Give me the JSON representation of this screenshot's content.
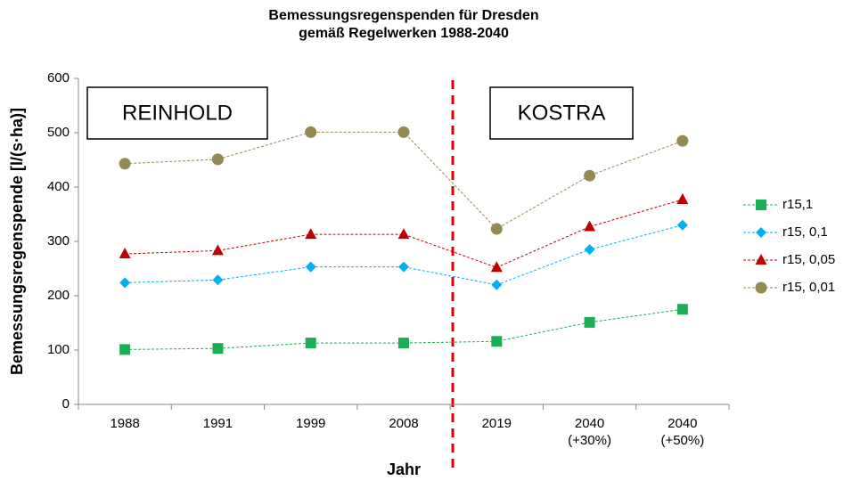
{
  "chart_data": {
    "type": "line",
    "title": "Bemessungsregenspenden für Dresden\ngemäß Regelwerken 1988-2040",
    "y_label": "Bemessungsregenspende [l/(s·ha)]",
    "x_label": "Jahr",
    "annotations": [
      "REINHOLD",
      "KOSTRA"
    ],
    "categories": [
      "1988",
      "1991",
      "1999",
      "2008",
      "2019",
      "2040\n(+30%)",
      "2040\n(+50%)"
    ],
    "ylim": [
      0,
      600
    ],
    "yticks": [
      0,
      100,
      200,
      300,
      400,
      500,
      600
    ],
    "grid": false,
    "legend": "right",
    "series": [
      {
        "name": "r15,1",
        "color": "#1aaf54",
        "marker": "square",
        "values": [
          101,
          103,
          113,
          113,
          116,
          151,
          175
        ]
      },
      {
        "name": "r15, 0,1",
        "color": "#00b0f0",
        "marker": "diamond",
        "values": [
          224,
          229,
          253,
          253,
          220,
          285,
          330
        ]
      },
      {
        "name": "r15, 0,05",
        "color": "#c00000",
        "marker": "triangle",
        "values": [
          277,
          283,
          313,
          313,
          252,
          327,
          377
        ]
      },
      {
        "name": "r15, 0,01",
        "color": "#938953",
        "marker": "circle",
        "values": [
          443,
          451,
          501,
          501,
          323,
          421,
          485
        ]
      }
    ]
  }
}
